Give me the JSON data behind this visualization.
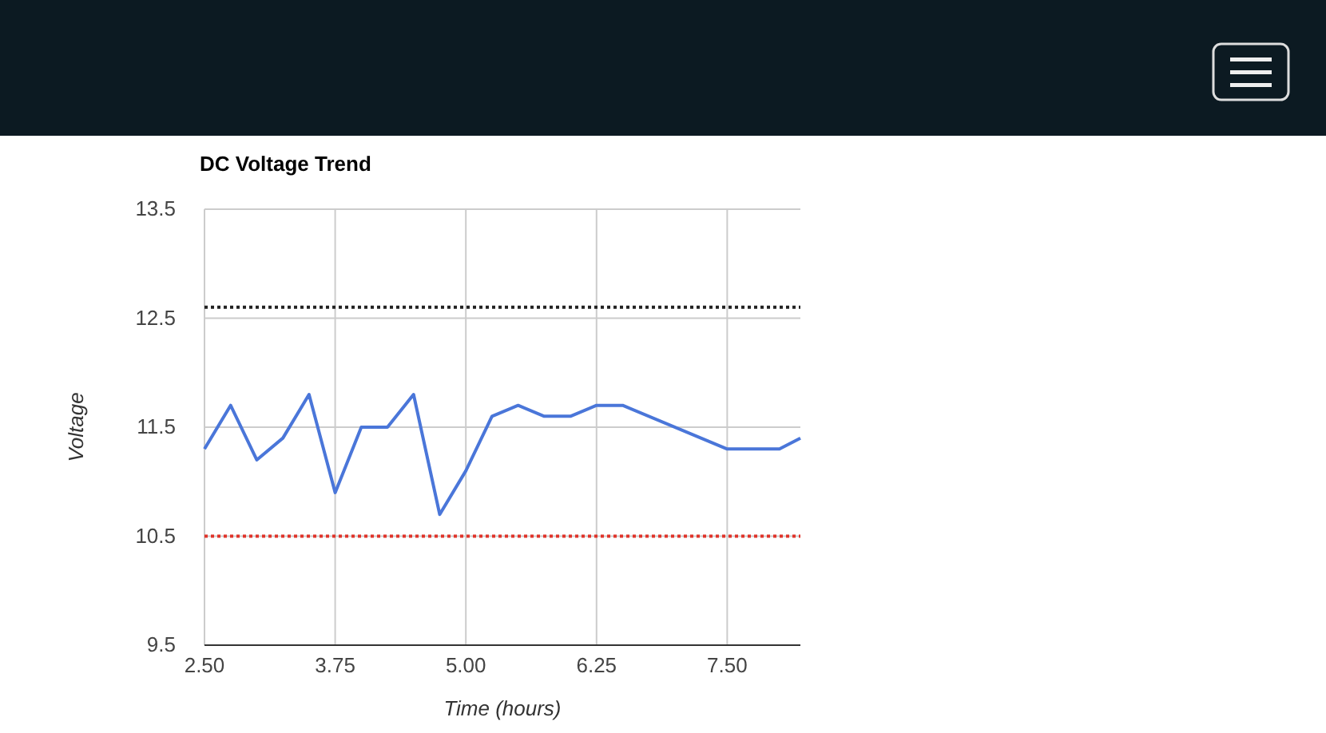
{
  "chart_data": {
    "type": "line",
    "title": "DC Voltage Trend",
    "xlabel": "Time (hours)",
    "ylabel": "Voltage",
    "x": [
      2.5,
      2.75,
      3.0,
      3.25,
      3.5,
      3.75,
      4.0,
      4.25,
      4.5,
      4.75,
      5.0,
      5.25,
      5.5,
      5.75,
      6.0,
      6.25,
      6.5,
      7.5,
      8.0,
      8.2
    ],
    "series": [
      {
        "color": "#4a76d9",
        "values": [
          11.3,
          11.7,
          11.2,
          11.4,
          11.8,
          10.9,
          11.5,
          11.5,
          11.8,
          10.7,
          11.1,
          11.6,
          11.7,
          11.6,
          11.6,
          11.7,
          11.7,
          11.3,
          11.3,
          11.4
        ]
      }
    ],
    "xlim": [
      2.5,
      8.2
    ],
    "xticks": [
      {
        "value": 2.5,
        "label": "2.50"
      },
      {
        "value": 3.75,
        "label": "3.75"
      },
      {
        "value": 5,
        "label": "5.00"
      },
      {
        "value": 6.25,
        "label": "6.25"
      },
      {
        "value": 7.5,
        "label": "7.50"
      }
    ],
    "ylim": [
      9.5,
      13.5
    ],
    "yticks": [
      9.5,
      10.5,
      11.5,
      12.5,
      13.5
    ],
    "ref_lines": [
      {
        "axis": "y",
        "value": 12.6,
        "color": "#222222",
        "line_style": "dotted"
      },
      {
        "axis": "y",
        "value": 10.5,
        "color": "#e0342a",
        "line_style": "dotted"
      }
    ],
    "grid": true
  }
}
